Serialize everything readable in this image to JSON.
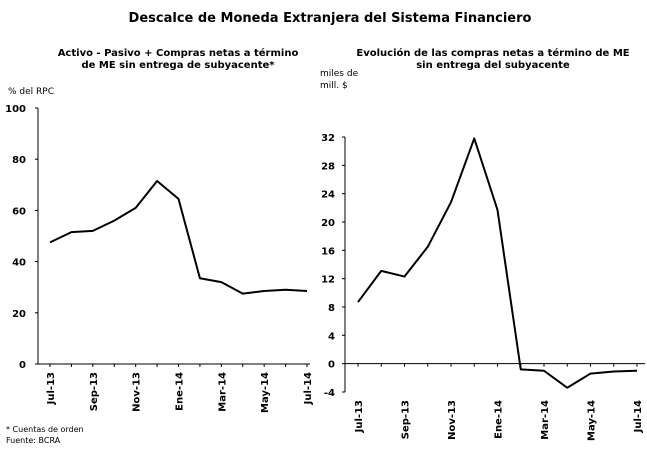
{
  "title": "Descalce de Moneda Extranjera del Sistema Financiero",
  "footnotes": [
    "* Cuentas de orden",
    "Fuente: BCRA"
  ],
  "chart_data": [
    {
      "type": "line",
      "title": "Activo - Pasivo + Compras netas a término\nde ME sin entrega de subyacente*",
      "ylabel": "% del RPC",
      "categories": [
        "Jul-13",
        null,
        "Sep-13",
        null,
        "Nov-13",
        null,
        "Ene-14",
        null,
        "Mar-14",
        null,
        "May-14",
        null,
        "Jul-14"
      ],
      "values": [
        47.5,
        51.5,
        52,
        56,
        61,
        71.5,
        64.5,
        33.5,
        32,
        27.5,
        28.5,
        29,
        28.5
      ],
      "color": "#000000",
      "ylim": [
        0,
        100
      ],
      "yticks": [
        0,
        20,
        40,
        60,
        80,
        100
      ]
    },
    {
      "type": "line",
      "title": "Evolución de las compras netas a término de ME\nsin entrega del subyacente",
      "ylabel": "miles de\nmill. $",
      "categories": [
        "Jul-13",
        null,
        "Sep-13",
        null,
        "Nov-13",
        null,
        "Ene-14",
        null,
        "Mar-14",
        null,
        "May-14",
        null,
        "Jul-14"
      ],
      "values": [
        8.7,
        13.1,
        12.3,
        16.5,
        22.8,
        31.8,
        21.7,
        -0.8,
        -1,
        -3.4,
        -1.4,
        -1.1,
        -1
      ],
      "color": "#000000",
      "ylim": [
        -4,
        32
      ],
      "yticks": [
        -4,
        0,
        4,
        8,
        12,
        16,
        20,
        24,
        28,
        32
      ]
    }
  ]
}
